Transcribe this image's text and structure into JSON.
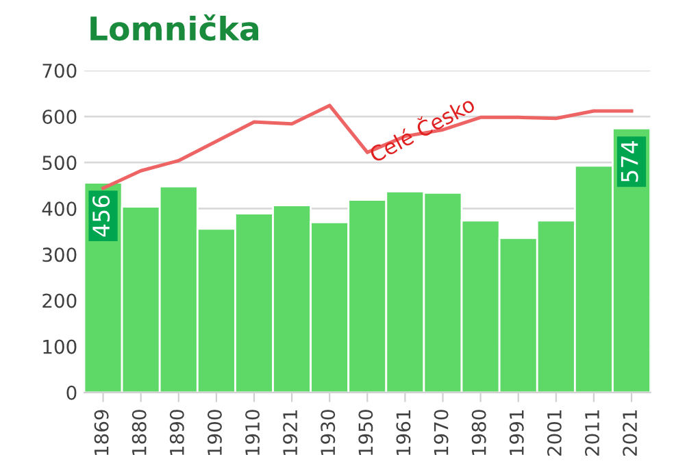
{
  "chart_data": {
    "type": "bar",
    "title": "Lomnička",
    "categories": [
      "1869",
      "1880",
      "1890",
      "1900",
      "1910",
      "1921",
      "1930",
      "1950",
      "1961",
      "1970",
      "1980",
      "1991",
      "2001",
      "2011",
      "2021"
    ],
    "series": [
      {
        "color": "#5ed967",
        "values": [
          456,
          404,
          448,
          356,
          389,
          407,
          370,
          419,
          437,
          434,
          374,
          336,
          374,
          493,
          574
        ],
        "value_labels": [
          "456",
          null,
          null,
          null,
          null,
          null,
          null,
          null,
          null,
          null,
          null,
          null,
          null,
          null,
          "574"
        ]
      },
      {
        "type": "line",
        "name": "Celé Česko",
        "color": "#ee6363",
        "values": [
          444,
          482,
          504,
          546,
          588,
          584,
          624,
          522,
          557,
          571,
          598,
          598,
          596,
          612,
          612
        ]
      }
    ],
    "ylim": [
      0,
      700
    ],
    "yticks": [
      0,
      100,
      200,
      300,
      400,
      500,
      600,
      700
    ],
    "grid": "y",
    "legend": false
  }
}
